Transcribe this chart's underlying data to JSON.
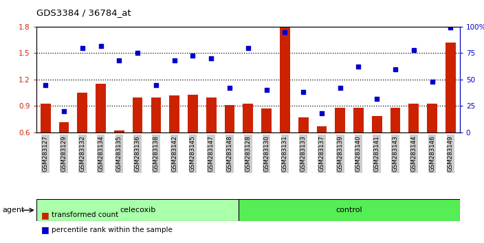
{
  "title": "GDS3384 / 36784_at",
  "samples": [
    "GSM283127",
    "GSM283129",
    "GSM283132",
    "GSM283134",
    "GSM283135",
    "GSM283136",
    "GSM283138",
    "GSM283142",
    "GSM283145",
    "GSM283147",
    "GSM283148",
    "GSM283128",
    "GSM283130",
    "GSM283131",
    "GSM283133",
    "GSM283137",
    "GSM283139",
    "GSM283140",
    "GSM283141",
    "GSM283143",
    "GSM283144",
    "GSM283146",
    "GSM283149"
  ],
  "bar_values": [
    0.93,
    0.72,
    1.05,
    1.15,
    0.62,
    1.0,
    1.0,
    1.02,
    1.03,
    1.0,
    0.91,
    0.93,
    0.87,
    1.8,
    0.77,
    0.67,
    0.88,
    0.88,
    0.79,
    0.88,
    0.93,
    0.93,
    1.62
  ],
  "dot_pct": [
    45,
    20,
    80,
    82,
    68,
    75,
    45,
    68,
    73,
    70,
    42,
    80,
    40,
    95,
    38,
    18,
    42,
    62,
    32,
    60,
    78,
    48,
    99
  ],
  "celecoxib_count": 11,
  "control_count": 12,
  "ymin": 0.6,
  "ymax": 1.8,
  "yticks_left": [
    0.6,
    0.9,
    1.2,
    1.5,
    1.8
  ],
  "yticks_right": [
    0,
    25,
    50,
    75,
    100
  ],
  "hlines": [
    0.9,
    1.2,
    1.5
  ],
  "bar_color": "#cc2200",
  "dot_color": "#0000cc",
  "celecoxib_color": "#aaffaa",
  "control_color": "#55ee55",
  "tick_bg": "#cccccc",
  "agent_label": "agent",
  "celecoxib_label": "celecoxib",
  "control_label": "control",
  "legend_bar": "transformed count",
  "legend_dot": "percentile rank within the sample"
}
